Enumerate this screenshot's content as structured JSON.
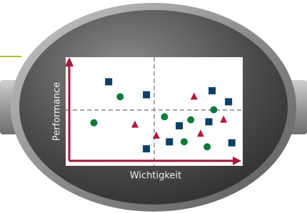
{
  "chart_data": {
    "type": "scatter",
    "x_label": "Wichtigkeit",
    "y_label": "Performance",
    "xlim": [
      0,
      100
    ],
    "ylim": [
      0,
      100
    ],
    "axis_color": "#a3183c",
    "series": [
      {
        "marker": "square",
        "color": "#0d3f66",
        "x": [
          24,
          47,
          87,
          97,
          67,
          85,
          61,
          47,
          99
        ],
        "values": [
          79,
          66,
          70,
          59,
          35,
          39,
          19,
          12,
          18
        ]
      },
      {
        "marker": "circle",
        "color": "#0b7a3c",
        "x": [
          31,
          15,
          58,
          74,
          88,
          70,
          84
        ],
        "values": [
          64,
          38,
          44,
          41,
          51,
          19,
          14
        ]
      },
      {
        "marker": "triangle",
        "color": "#b3173a",
        "x": [
          76,
          40,
          53,
          94,
          80
        ],
        "values": [
          64,
          36,
          25,
          41,
          27
        ]
      }
    ]
  }
}
